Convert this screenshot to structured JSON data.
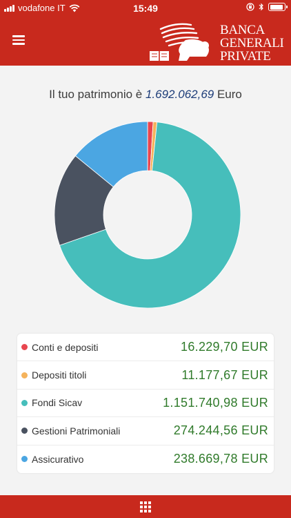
{
  "status_bar": {
    "carrier": "vodafone IT",
    "time": "15:49"
  },
  "header": {
    "brand_line1": "BANCA",
    "brand_line2": "GENERALI",
    "brand_line3": "PRIVATE"
  },
  "summary": {
    "prefix": "Il tuo patrimonio è",
    "total": "1.692.062,69",
    "currency": "Euro"
  },
  "colors": {
    "brand_red": "#c8291d",
    "conti": "#e8464f",
    "depositi": "#f5b35c",
    "fondi": "#46bebb",
    "gestioni": "#4a5260",
    "assicurativo": "#4ba6e2",
    "amount_green": "#2f7a2a"
  },
  "chart_data": {
    "type": "pie",
    "variant": "donut",
    "categories": [
      "Conti e depositi",
      "Depositi titoli",
      "Fondi Sicav",
      "Gestioni Patrimoniali",
      "Assicurativo"
    ],
    "values": [
      16229.7,
      11177.67,
      1151740.98,
      274244.56,
      238669.78
    ],
    "colors": [
      "#e8464f",
      "#f5b35c",
      "#46bebb",
      "#4a5260",
      "#4ba6e2"
    ]
  },
  "legend": [
    {
      "label": "Conti e depositi",
      "amount": "16.229,70 EUR",
      "color": "#e8464f"
    },
    {
      "label": "Depositi titoli",
      "amount": "11.177,67 EUR",
      "color": "#f5b35c"
    },
    {
      "label": "Fondi Sicav",
      "amount": "1.151.740,98 EUR",
      "color": "#46bebb"
    },
    {
      "label": "Gestioni Patrimoniali",
      "amount": "274.244,56 EUR",
      "color": "#4a5260"
    },
    {
      "label": "Assicurativo",
      "amount": "238.669,78 EUR",
      "color": "#4ba6e2"
    }
  ],
  "icons": {
    "menu": "hamburger-menu-icon",
    "apps": "grid-apps-icon",
    "logo": "winged-lion-logo"
  }
}
